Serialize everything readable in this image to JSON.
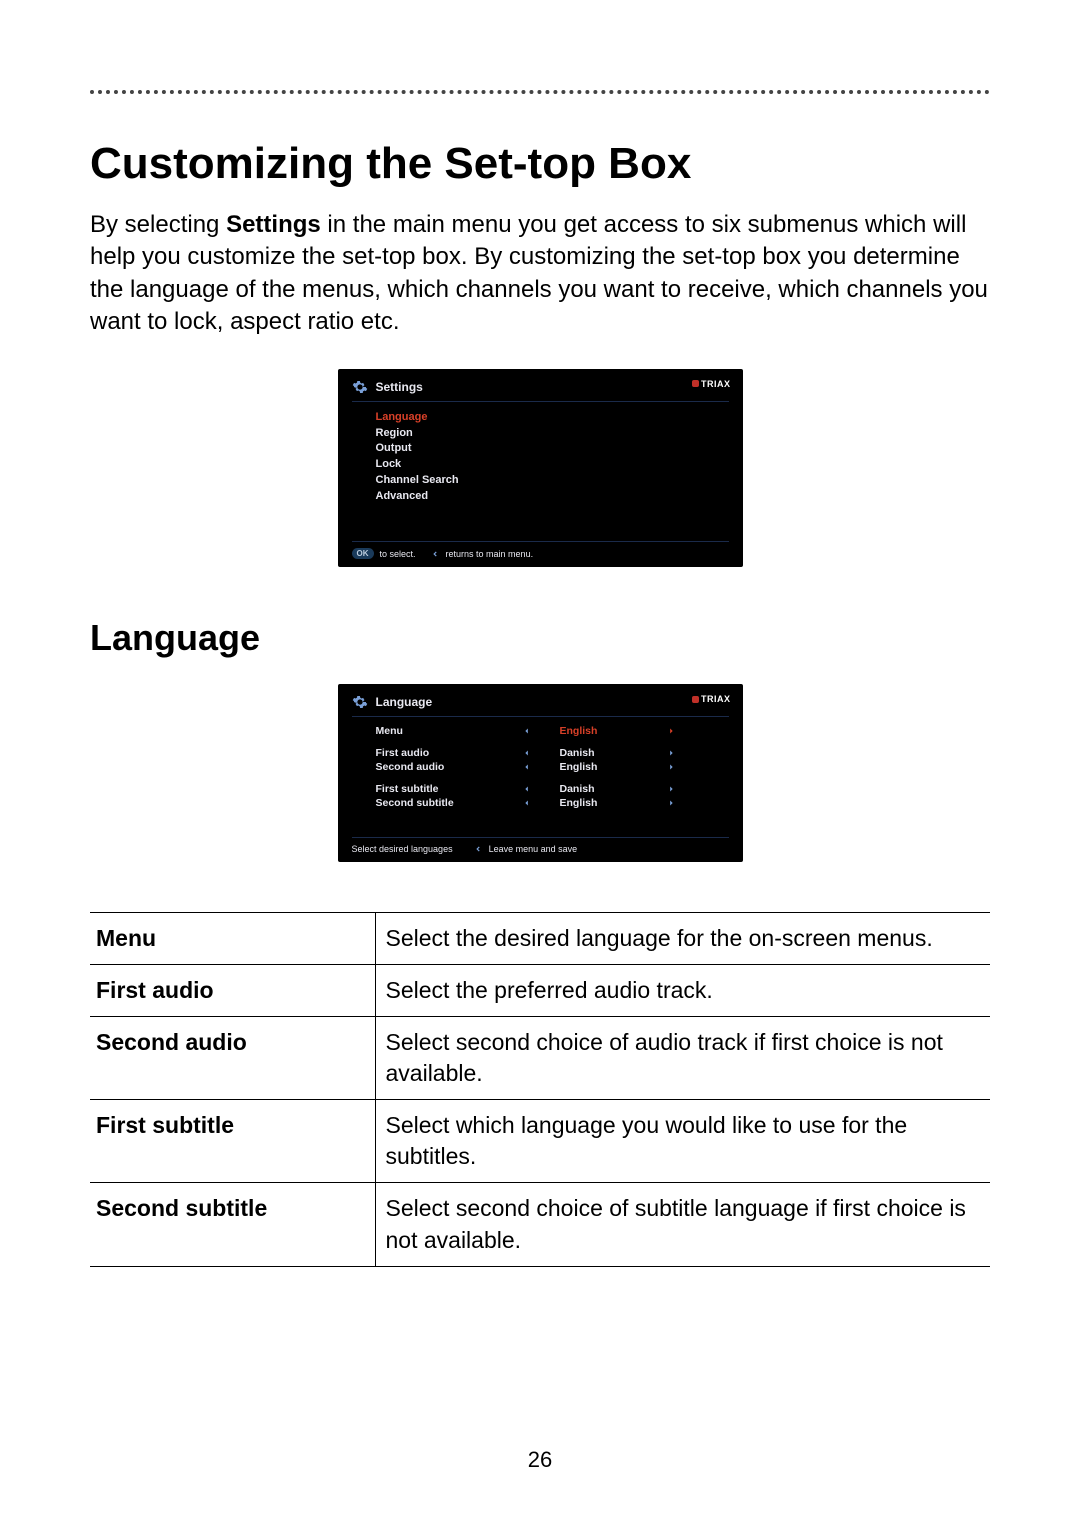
{
  "heading": "Customizing the Set-top Box",
  "intro_before": "By selecting ",
  "intro_bold": "Settings",
  "intro_after": " in the main menu you get access to six submenus which will help you customize the set-top box. By customizing the set-top box you determine the language of the menus, which channels you want to receive, which channels you want to lock, aspect ratio etc.",
  "brand": "TRIAX",
  "screen1": {
    "title": "Settings",
    "items": [
      "Language",
      "Region",
      "Output",
      "Lock",
      "Channel Search",
      "Advanced"
    ],
    "selected_index": 0,
    "footer_ok_hint": "to select.",
    "footer_back_hint": "returns to main menu."
  },
  "section2_heading": "Language",
  "screen2": {
    "title": "Language",
    "rows": [
      {
        "label": "Menu",
        "value": "English",
        "selected": true
      },
      {
        "label": "First audio",
        "value": "Danish",
        "selected": false
      },
      {
        "label": "Second audio",
        "value": "English",
        "selected": false
      },
      {
        "label": "First subtitle",
        "value": "Danish",
        "selected": false
      },
      {
        "label": "Second subtitle",
        "value": "English",
        "selected": false
      }
    ],
    "footer_left": "Select desired languages",
    "footer_right": "Leave menu and save"
  },
  "table": [
    {
      "k": "Menu",
      "v": "Select the desired language for the on-screen menus."
    },
    {
      "k": "First audio",
      "v": "Select the preferred audio track."
    },
    {
      "k": "Second audio",
      "v": "Select second choice of audio track if first choice is not available."
    },
    {
      "k": "First subtitle",
      "v": "Select which language you would like to use for the subtitles."
    },
    {
      "k": "Second subtitle",
      "v": "Select second choice of subtitle language if first choice is not available."
    }
  ],
  "page_number": "26",
  "colors": {
    "accent_red": "#d84028",
    "tv_bg": "#000000",
    "tv_text": "#e8e8f0",
    "arrow_blue": "#7aa0d8"
  }
}
